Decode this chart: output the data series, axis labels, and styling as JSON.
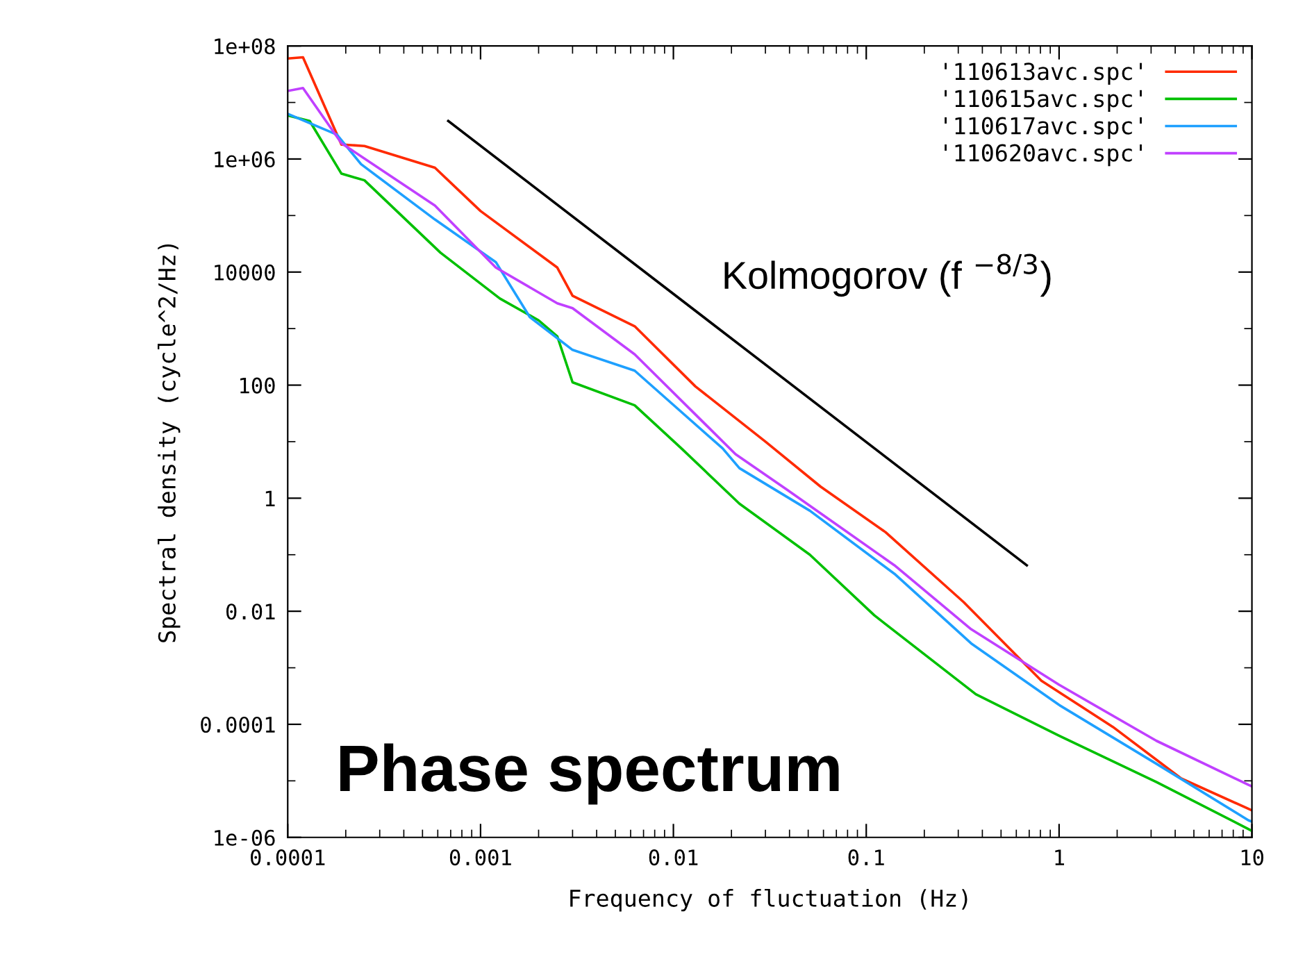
{
  "chart_data": {
    "type": "line",
    "xlabel": "Frequency of fluctuation (Hz)",
    "ylabel": "Spectral density (cycle^2/Hz)",
    "log": "xy",
    "legend": "top right",
    "grid": false,
    "xlim": [
      0.0001,
      10
    ],
    "xticks": [
      {
        "value": 0.0001,
        "label": "0.0001"
      },
      {
        "value": 0.001,
        "label": "0.001"
      },
      {
        "value": 0.01,
        "label": "0.01"
      },
      {
        "value": 0.1,
        "label": "0.1"
      },
      1,
      10
    ],
    "ylim": [
      1e-06,
      100000000.0
    ],
    "yticks": [
      {
        "value": 1e-06,
        "label": "1e-06"
      },
      {
        "value": 0.0001,
        "label": "0.0001"
      },
      {
        "value": 0.01,
        "label": "0.01"
      },
      1,
      100,
      10000,
      {
        "value": 1000000.0,
        "label": "1e+06"
      },
      {
        "value": 100000000.0,
        "label": "1e+08"
      }
    ],
    "series": [
      {
        "name": "'110613avc.spc'",
        "color": "#ff2a00",
        "x": [
          0.0001,
          0.00012,
          0.00019,
          0.00025,
          0.00058,
          0.001,
          0.0025,
          0.003,
          0.0063,
          0.013,
          0.03,
          0.058,
          0.126,
          0.32,
          0.81,
          1.9,
          4.3,
          9.6,
          10
        ],
        "values": [
          60000000.0,
          63000000.0,
          1800000.0,
          1700000.0,
          700000.0,
          120000.0,
          12000.0,
          3800,
          1100,
          95,
          10,
          1.6,
          0.25,
          0.0145,
          0.00059,
          9e-05,
          1.1e-05,
          3.2e-06,
          3e-06
        ]
      },
      {
        "name": "'110615avc.spc'",
        "color": "#00c000",
        "x": [
          0.0001,
          0.00013,
          0.00019,
          0.00025,
          0.00062,
          0.00126,
          0.002,
          0.0025,
          0.003,
          0.0063,
          0.011,
          0.022,
          0.051,
          0.11,
          0.37,
          1,
          3.2,
          9.6,
          10
        ],
        "values": [
          5900000.0,
          4700000.0,
          550000.0,
          420000.0,
          22000.0,
          3400,
          1400,
          730,
          112,
          44,
          7.6,
          0.8,
          0.1,
          0.0085,
          0.00034,
          6.3e-05,
          9.5e-06,
          1.4e-06,
          1.3e-06
        ]
      },
      {
        "name": "'110617avc.spc'",
        "color": "#1ea0ff",
        "x": [
          0.0001,
          0.00018,
          0.00024,
          0.00058,
          0.0012,
          0.0018,
          0.003,
          0.0063,
          0.018,
          0.022,
          0.051,
          0.14,
          0.35,
          1,
          3.2,
          9.6,
          10
        ],
        "values": [
          6300000.0,
          2700000.0,
          810000.0,
          85000.0,
          15000.0,
          1600,
          420,
          180,
          7.6,
          3.4,
          0.6,
          0.046,
          0.0027,
          0.00022,
          2e-05,
          2e-06,
          1.9e-06
        ]
      },
      {
        "name": "'110620avc.spc'",
        "color": "#c040ff",
        "x": [
          0.0001,
          0.00012,
          0.00019,
          0.00058,
          0.0012,
          0.0025,
          0.003,
          0.0063,
          0.021,
          0.039,
          0.14,
          0.35,
          1,
          3.2,
          9.6,
          10
        ],
        "values": [
          16000000.0,
          18000000.0,
          1900000.0,
          150000.0,
          12000.0,
          2800,
          2300,
          350,
          6,
          1.4,
          0.065,
          0.0048,
          0.0005,
          5.1e-05,
          8.5e-06,
          8e-06
        ]
      },
      {
        "color": "#000000",
        "x": [
          0.00068,
          0.68
        ],
        "values": [
          4700000.0,
          0.065
        ]
      }
    ],
    "annotations": [
      "Kolmogorov (f $^{−8/3}$)",
      "Phase spectrum"
    ]
  }
}
